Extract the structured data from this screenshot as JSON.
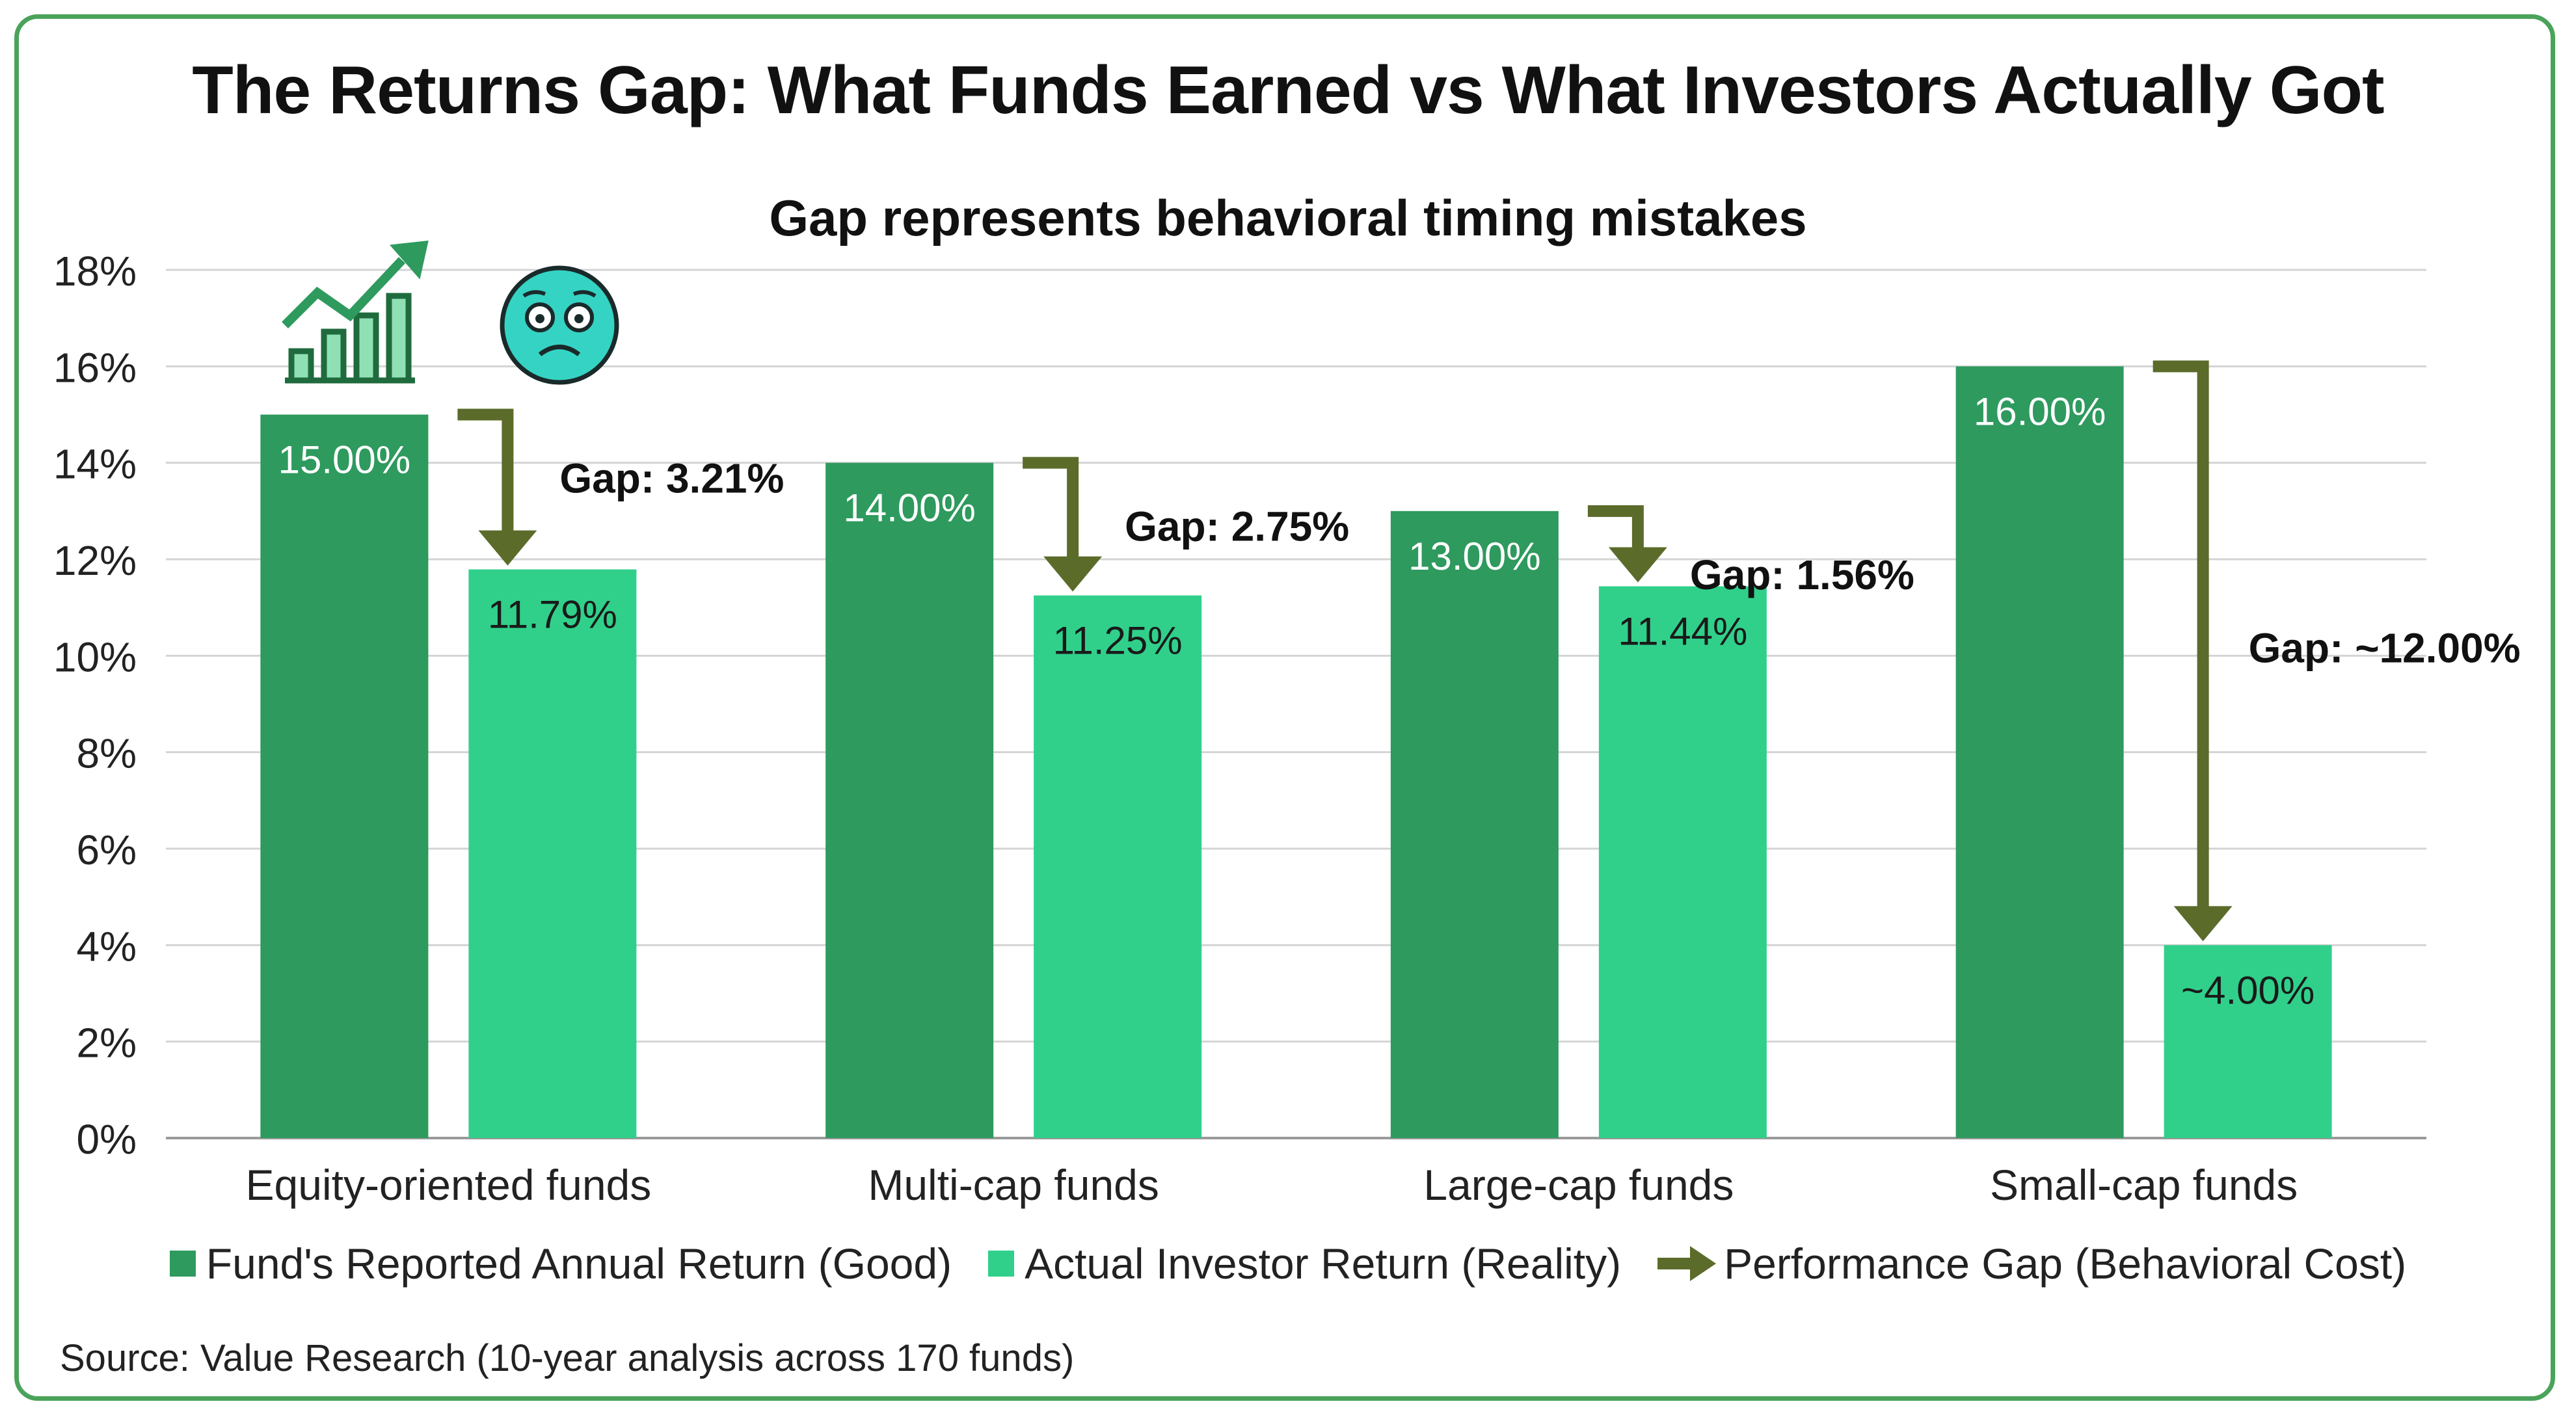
{
  "chart_data": {
    "type": "bar",
    "title": "The Returns Gap: What Funds Earned vs What Investors Actually Got",
    "subtitle": "Gap represents behavioral timing mistakes",
    "categories": [
      "Equity-oriented funds",
      "Multi-cap funds",
      "Large-cap funds",
      "Small-cap funds"
    ],
    "series": [
      {
        "name": "Fund's Reported Annual Return (Good)",
        "values": [
          15.0,
          14.0,
          13.0,
          16.0
        ],
        "labels": [
          "15.00%",
          "14.00%",
          "13.00%",
          "16.00%"
        ],
        "color": "#2e9a5e"
      },
      {
        "name": "Actual Investor Return (Reality)",
        "values": [
          11.79,
          11.25,
          11.44,
          4.0
        ],
        "labels": [
          "11.79%",
          "11.25%",
          "11.44%",
          "~4.00%"
        ],
        "color": "#30d08b"
      }
    ],
    "gaps": {
      "name": "Performance Gap (Behavioral Cost)",
      "labels": [
        "Gap: 3.21%",
        "Gap: 2.75%",
        "Gap: 1.56%",
        "Gap: ~12.00%"
      ],
      "color": "#5b6b2a"
    },
    "ylim": [
      0,
      18
    ],
    "yticks": [
      0,
      2,
      4,
      6,
      8,
      10,
      12,
      14,
      16,
      18
    ],
    "ytick_labels": [
      "0%",
      "2%",
      "4%",
      "6%",
      "8%",
      "10%",
      "12%",
      "14%",
      "16%",
      "18%"
    ],
    "grid": true,
    "legend_position": "bottom",
    "icons": [
      "growth-chart-icon",
      "worried-face-icon"
    ]
  },
  "legend": {
    "fund": "Fund's Reported Annual Return (Good)",
    "investor": "Actual Investor Return (Reality)",
    "gap": "Performance Gap (Behavioral Cost)"
  },
  "source": "Source: Value Research (10-year analysis across 170 funds)"
}
